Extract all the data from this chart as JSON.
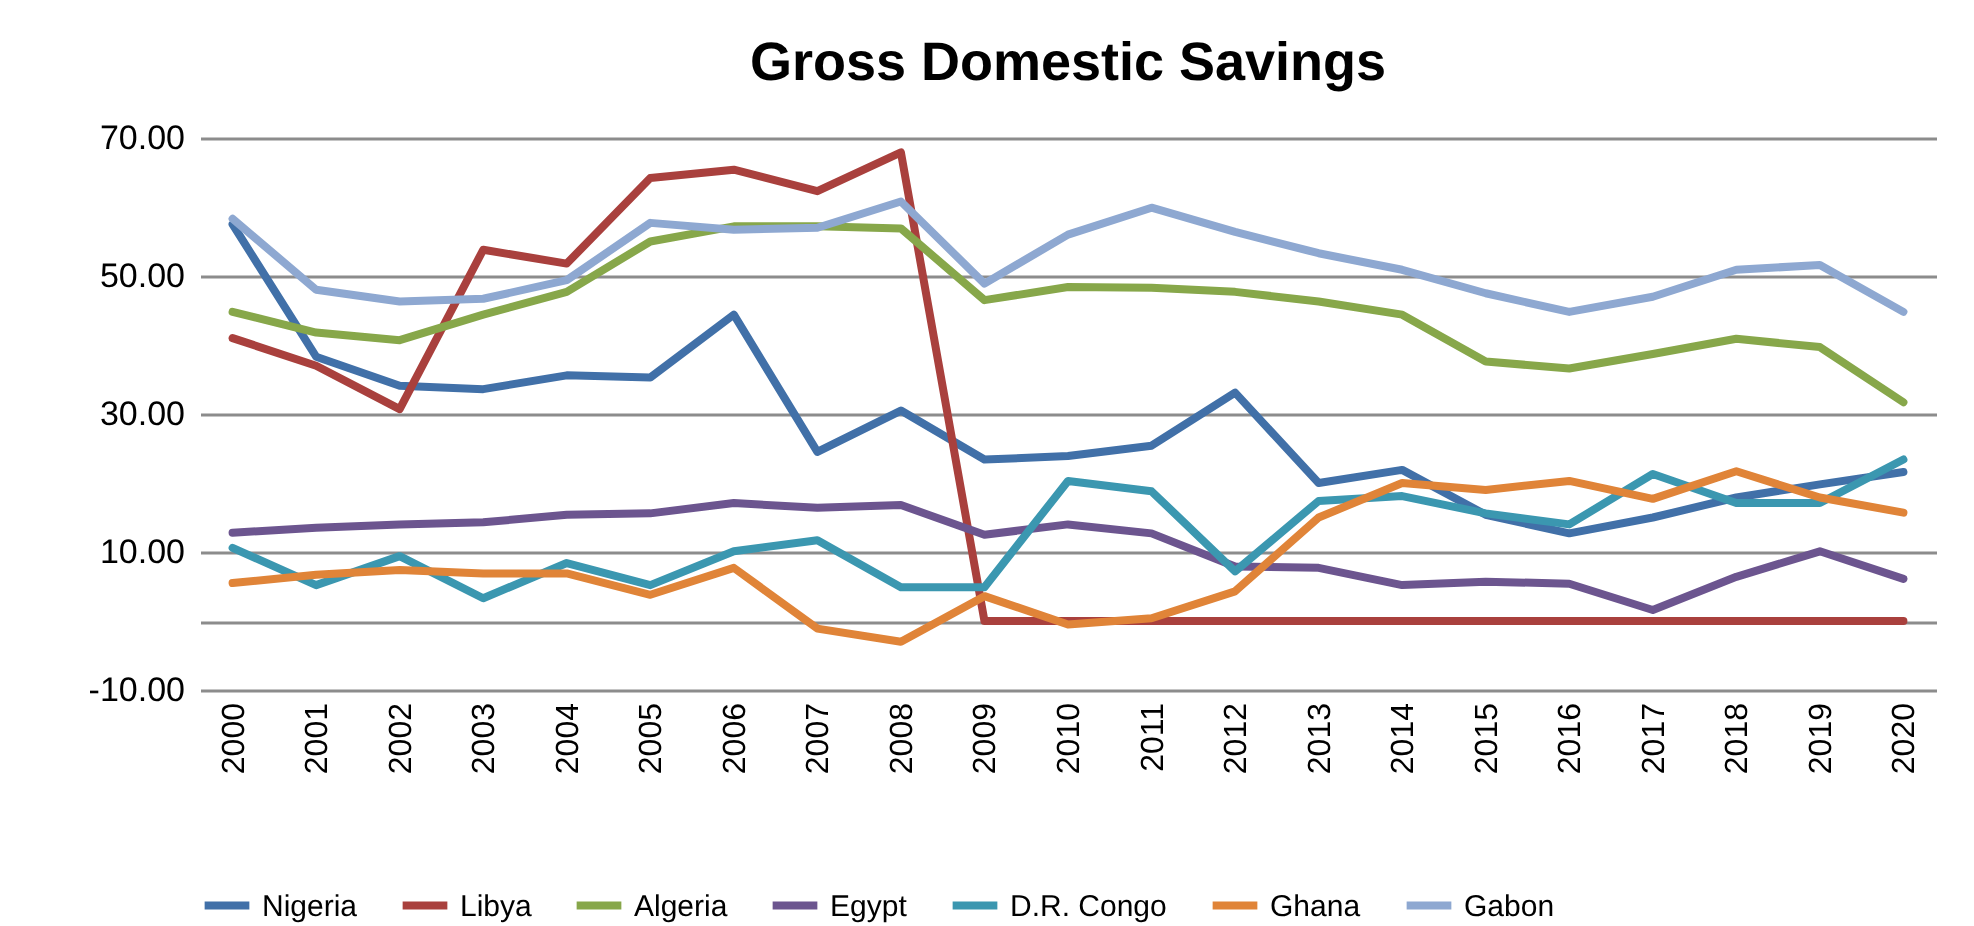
{
  "chart_data": {
    "type": "line",
    "title": "Gross Domestic Savings",
    "categories": [
      "2000",
      "2001",
      "2002",
      "2003",
      "2004",
      "2005",
      "2006",
      "2007",
      "2008",
      "2009",
      "2010",
      "2011",
      "2012",
      "2013",
      "2014",
      "2015",
      "2016",
      "2017",
      "2018",
      "2019",
      "2020"
    ],
    "series": [
      {
        "name": "Nigeria",
        "color": "#4170a8",
        "values": [
          57.5,
          38.3,
          34.1,
          33.6,
          35.6,
          35.3,
          44.4,
          24.5,
          30.5,
          23.4,
          23.9,
          25.4,
          33.1,
          20.0,
          21.9,
          15.4,
          12.7,
          15.0,
          17.9,
          19.8,
          21.6
        ]
      },
      {
        "name": "Libya",
        "color": "#a9403d",
        "values": [
          41.0,
          37.0,
          30.7,
          53.8,
          51.8,
          64.2,
          65.4,
          62.3,
          67.9,
          0,
          0,
          0,
          0,
          0,
          0,
          0,
          0,
          0,
          0,
          0,
          0
        ]
      },
      {
        "name": "Algeria",
        "color": "#87a74a",
        "values": [
          44.8,
          41.8,
          40.7,
          44.4,
          47.7,
          55.0,
          57.2,
          57.2,
          56.9,
          46.5,
          48.4,
          48.3,
          47.7,
          46.3,
          44.4,
          37.6,
          36.6,
          38.7,
          40.9,
          39.7,
          31.7
        ]
      },
      {
        "name": "Egypt",
        "color": "#6c558f",
        "values": [
          12.8,
          13.5,
          14.0,
          14.3,
          15.4,
          15.6,
          17.1,
          16.4,
          16.8,
          12.5,
          14.0,
          12.7,
          7.9,
          7.7,
          5.2,
          5.7,
          5.4,
          1.6,
          6.4,
          10.1,
          6.1
        ]
      },
      {
        "name": "D.R. Congo",
        "color": "#3b97b0",
        "values": [
          10.6,
          5.2,
          9.4,
          3.3,
          8.4,
          5.2,
          10.1,
          11.7,
          4.9,
          4.9,
          20.3,
          18.8,
          7.2,
          17.4,
          18.1,
          15.6,
          14.0,
          21.3,
          17.1,
          17.1,
          23.4
        ]
      },
      {
        "name": "Ghana",
        "color": "#e08438",
        "values": [
          5.5,
          6.7,
          7.4,
          6.9,
          6.9,
          3.8,
          7.7,
          -1.1,
          -3.0,
          3.6,
          -0.5,
          0.4,
          4.3,
          15.0,
          20.0,
          19.0,
          20.3,
          17.7,
          21.7,
          17.9,
          15.7
        ]
      },
      {
        "name": "Gabon",
        "color": "#8ea8d1",
        "values": [
          58.3,
          48.0,
          46.3,
          46.7,
          49.4,
          57.7,
          56.7,
          57.0,
          60.8,
          48.9,
          56.0,
          59.9,
          56.4,
          53.3,
          50.9,
          47.5,
          44.8,
          47.0,
          50.9,
          51.6,
          44.8
        ]
      }
    ],
    "ylim": [
      -10,
      70
    ],
    "yticks": [
      {
        "value": -10,
        "label": "-10.00"
      },
      {
        "value": 0,
        "label": null
      },
      {
        "value": 10,
        "label": "10.00"
      },
      {
        "value": 30,
        "label": "30.00"
      },
      {
        "value": 50,
        "label": "50.00"
      },
      {
        "value": 70,
        "label": "70.00"
      }
    ],
    "grid": "y",
    "legend": "bottom"
  }
}
